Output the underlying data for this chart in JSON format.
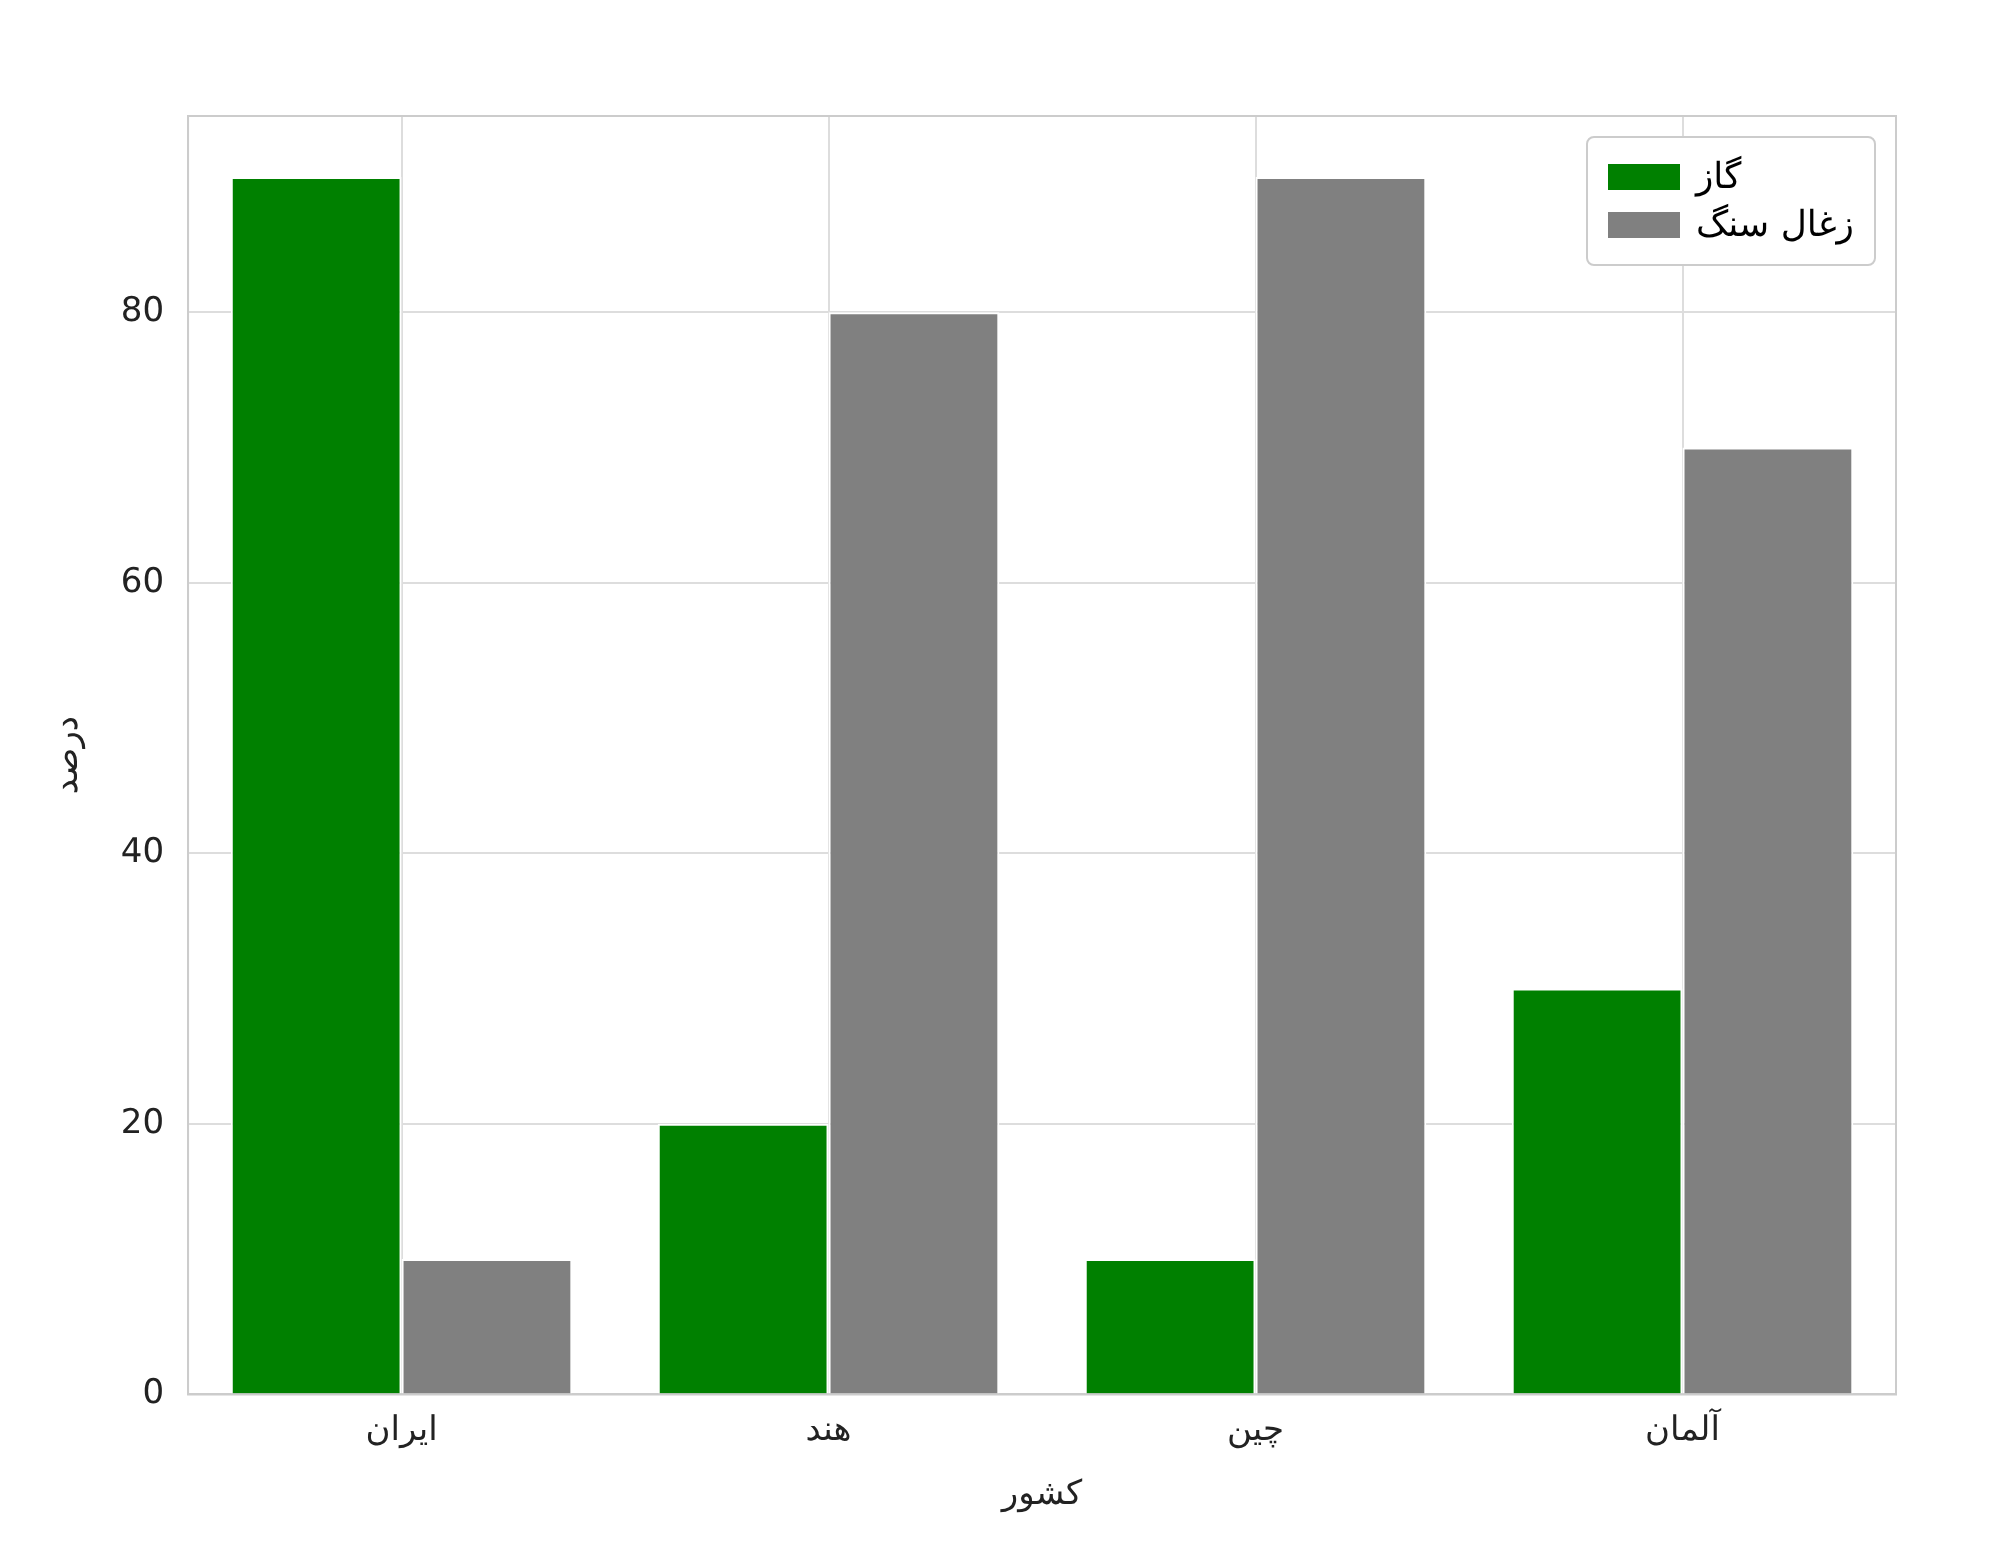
{
  "chart_data": {
    "type": "bar",
    "xlabel": "کشور",
    "ylabel": "درصد",
    "categories": [
      "ایران",
      "هند",
      "چین",
      "آلمان"
    ],
    "series": [
      {
        "name": "گاز",
        "color": "#008000",
        "values": [
          90,
          20,
          10,
          30
        ]
      },
      {
        "name": "زغال سنگ",
        "color": "#808080",
        "values": [
          10,
          80,
          90,
          70
        ]
      }
    ],
    "ylim": [
      0,
      94.5
    ],
    "yticks": [
      0,
      20,
      40,
      60,
      80
    ],
    "grid": true,
    "legend": "top right"
  }
}
